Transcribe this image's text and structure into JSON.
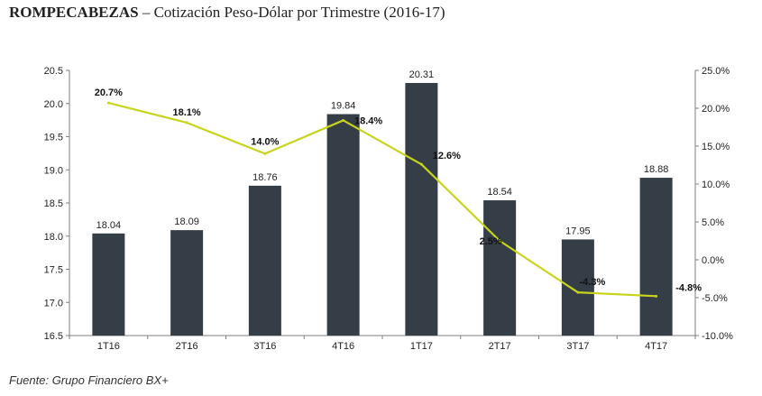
{
  "title": {
    "bold": "ROMPECABEZAS",
    "rest": " – Cotización Peso-Dólar  por Trimestre (2016-17)"
  },
  "source": "Fuente: Grupo Financiero BX+",
  "chart_data": {
    "type": "bar",
    "categories": [
      "1T16",
      "2T16",
      "3T16",
      "4T16",
      "1T17",
      "2T17",
      "3T17",
      "4T17"
    ],
    "bars": {
      "values": [
        18.04,
        18.09,
        18.76,
        19.84,
        20.31,
        18.54,
        17.95,
        18.88
      ],
      "labels": [
        "18.04",
        "18.09",
        "18.76",
        "19.84",
        "20.31",
        "18.54",
        "17.95",
        "18.88"
      ],
      "color": "#353d47",
      "axis": "left"
    },
    "line": {
      "values": [
        20.7,
        18.1,
        14.0,
        18.4,
        12.6,
        2.5,
        -4.3,
        -4.8
      ],
      "labels": [
        "20.7%",
        "18.1%",
        "14.0%",
        "18.4%",
        "12.6%",
        "2.5%",
        "-4.3%",
        "-4.8%"
      ],
      "color": "#c8d41c",
      "axis": "right"
    },
    "ylim_left": [
      16.5,
      20.5
    ],
    "yticks_left": [
      "16.5",
      "17.0",
      "17.5",
      "18.0",
      "18.5",
      "19.0",
      "19.5",
      "20.0",
      "20.5"
    ],
    "ylim_right": [
      -10,
      25
    ],
    "yticks_right": [
      "-10.0%",
      "-5.0%",
      "0.0%",
      "5.0%",
      "10.0%",
      "15.0%",
      "20.0%",
      "25.0%"
    ],
    "grid": false,
    "legend": "none"
  }
}
